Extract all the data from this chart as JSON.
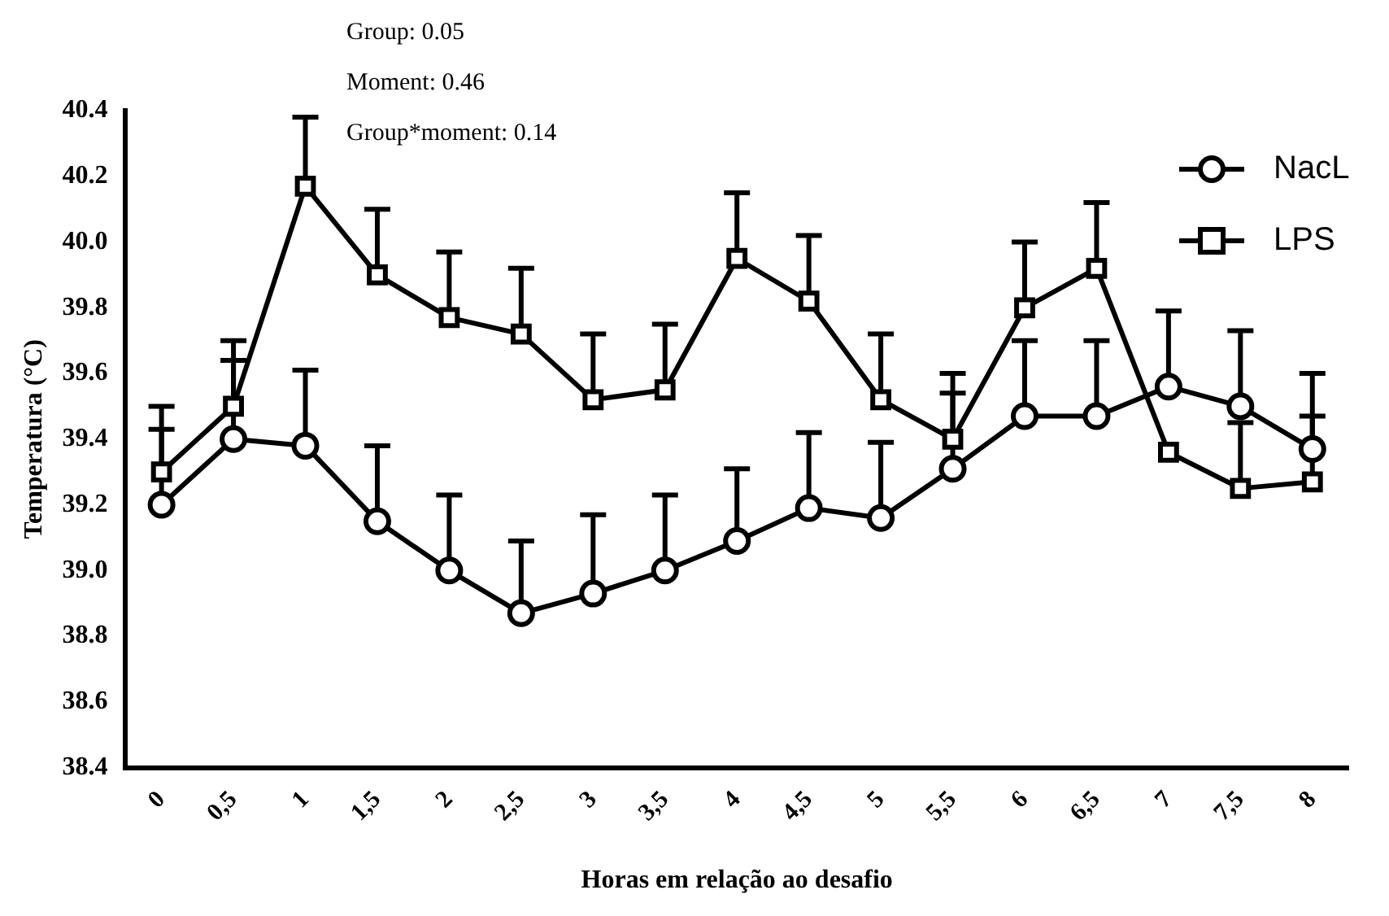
{
  "chart_data": {
    "type": "line",
    "xlabel": "Horas em relação ao desafio",
    "ylabel": "Temperatura (°C)",
    "annotations": [
      "Group: 0.05",
      "Moment: 0.46",
      "Group*moment: 0.14"
    ],
    "categories": [
      "0",
      "0,5",
      "1",
      "1,5",
      "2",
      "2,5",
      "3",
      "3,5",
      "4",
      "4,5",
      "5",
      "5,5",
      "6",
      "6,5",
      "7",
      "7,5",
      "8"
    ],
    "series": [
      {
        "name": "NacL",
        "color": "#000000",
        "marker": "circle",
        "values": [
          39.2,
          39.4,
          39.38,
          39.15,
          39.0,
          38.87,
          38.93,
          39.0,
          39.09,
          39.19,
          39.16,
          39.31,
          39.47,
          39.47,
          39.56,
          39.5,
          39.37
        ],
        "errors": [
          [
            39.2,
            39.43
          ],
          [
            39.4,
            39.64
          ],
          [
            39.38,
            39.61
          ],
          [
            39.15,
            39.38
          ],
          [
            39.0,
            39.23
          ],
          [
            38.87,
            39.09
          ],
          [
            38.93,
            39.17
          ],
          [
            39.0,
            39.23
          ],
          [
            39.09,
            39.31
          ],
          [
            39.19,
            39.42
          ],
          [
            39.16,
            39.39
          ],
          [
            39.31,
            39.54
          ],
          [
            39.47,
            39.7
          ],
          [
            39.47,
            39.7
          ],
          [
            39.56,
            39.79
          ],
          [
            39.5,
            39.73
          ],
          [
            39.37,
            39.6
          ]
        ]
      },
      {
        "name": "LPS",
        "color": "#000000",
        "marker": "square",
        "values": [
          39.3,
          39.5,
          40.17,
          39.9,
          39.77,
          39.72,
          39.52,
          39.55,
          39.95,
          39.82,
          39.52,
          39.4,
          39.8,
          39.92,
          39.36,
          39.25,
          39.27
        ],
        "errors": [
          [
            39.3,
            39.5
          ],
          [
            39.5,
            39.7
          ],
          [
            40.17,
            40.38
          ],
          [
            39.9,
            40.1
          ],
          [
            39.77,
            39.97
          ],
          [
            39.72,
            39.92
          ],
          [
            39.52,
            39.72
          ],
          [
            39.55,
            39.75
          ],
          [
            39.95,
            40.15
          ],
          [
            39.82,
            40.02
          ],
          [
            39.52,
            39.72
          ],
          [
            39.4,
            39.6
          ],
          [
            39.8,
            40.0
          ],
          [
            39.92,
            40.12
          ],
          null,
          [
            39.25,
            39.45
          ],
          [
            39.27,
            39.47
          ]
        ]
      }
    ],
    "ylim": [
      38.4,
      40.4
    ],
    "yticks": [
      38.4,
      38.6,
      38.8,
      {
        "value": 39,
        "label": "39.0"
      },
      39.2,
      39.4,
      39.6,
      39.8,
      {
        "value": 40,
        "label": "40.0"
      },
      40.2,
      40.4
    ],
    "grid": false,
    "legend": "top right",
    "line_style": "solid"
  }
}
